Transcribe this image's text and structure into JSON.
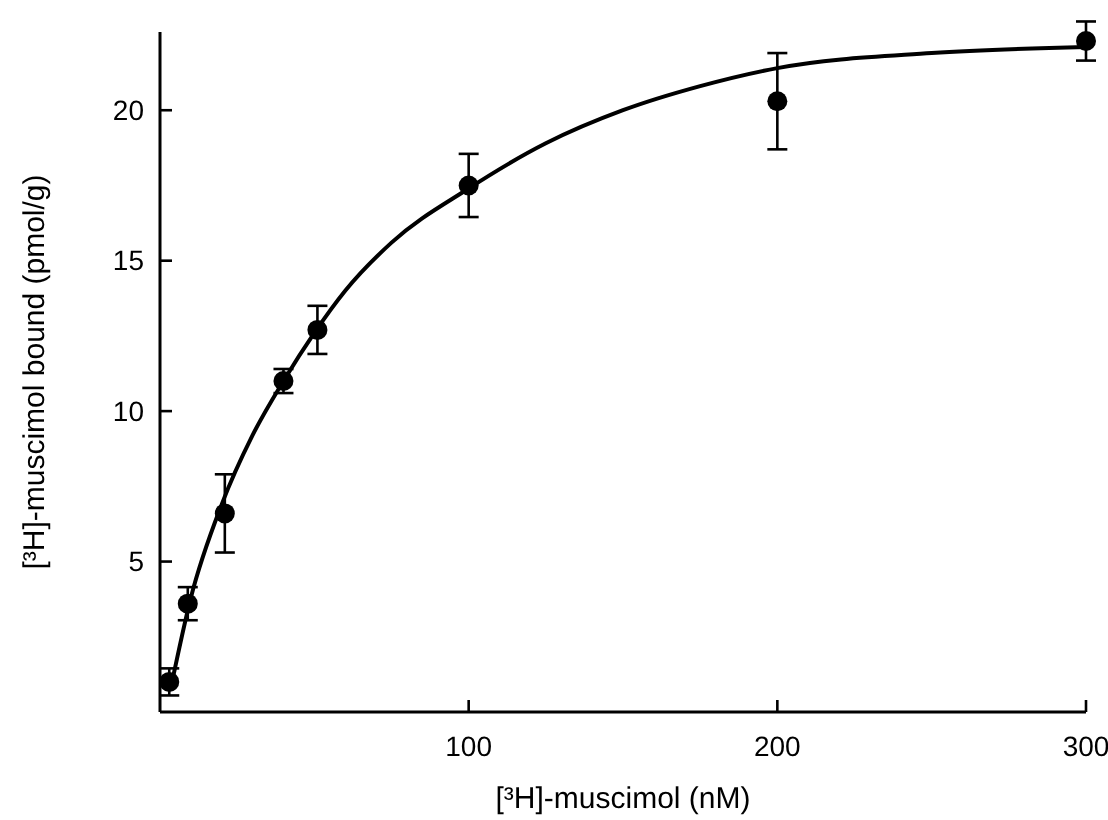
{
  "chart_data": {
    "type": "scatter",
    "xlabel": "[³H]-muscimol (nM)",
    "ylabel": "[³H]-muscimol bound (pmol/g)",
    "xlim": [
      0,
      300
    ],
    "xticks": [
      100,
      200,
      300
    ],
    "ylim": [
      0,
      22.6
    ],
    "yticks": [
      5,
      10,
      15,
      20
    ],
    "grid": false,
    "marker": "circle",
    "series": [
      {
        "color": "#000000",
        "x": [
          3,
          9,
          21,
          40,
          51,
          100,
          200,
          300
        ],
        "values": [
          1.0,
          3.6,
          6.6,
          11.0,
          12.7,
          17.5,
          20.3,
          22.3
        ],
        "errors": [
          0.45,
          0.55,
          1.3,
          0.4,
          0.8,
          1.05,
          1.6,
          0.65
        ]
      },
      {
        "type": "line",
        "color": "#000000",
        "line_style": "solid",
        "marker": "none",
        "x": [
          3.5,
          10,
          20,
          30,
          40,
          50,
          60,
          75,
          100,
          125,
          150,
          175,
          200,
          250,
          300
        ],
        "values": [
          0.8,
          3.8,
          6.9,
          9.2,
          11.0,
          12.6,
          14.0,
          15.6,
          17.4,
          18.9,
          20.0,
          20.8,
          21.4,
          21.9,
          22.1
        ]
      }
    ]
  }
}
